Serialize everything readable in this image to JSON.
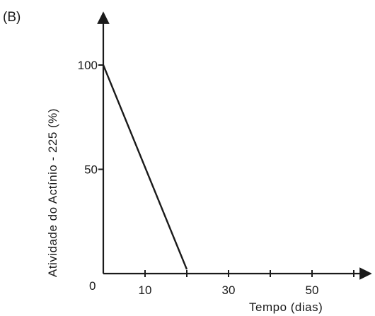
{
  "panel_label": "(B)",
  "chart_data": {
    "type": "line",
    "ylabel": "Atividade do Actínio - 225 (%)",
    "xlabel": "Tempo (dias)",
    "x_origin_label": "0",
    "x_ticks": [
      0,
      10,
      20,
      30,
      40,
      50,
      60
    ],
    "x_tick_labels": [
      {
        "value": 10,
        "label": "10"
      },
      {
        "value": 30,
        "label": "30"
      },
      {
        "value": 50,
        "label": "50"
      }
    ],
    "y_ticks": [
      {
        "value": 50,
        "label": "50"
      },
      {
        "value": 100,
        "label": "100"
      }
    ],
    "xlim": [
      0,
      63
    ],
    "ylim": [
      0,
      125
    ],
    "series": [
      {
        "x": [
          0,
          20
        ],
        "y": [
          100,
          2
        ]
      }
    ],
    "grid": false,
    "legend": "none"
  }
}
